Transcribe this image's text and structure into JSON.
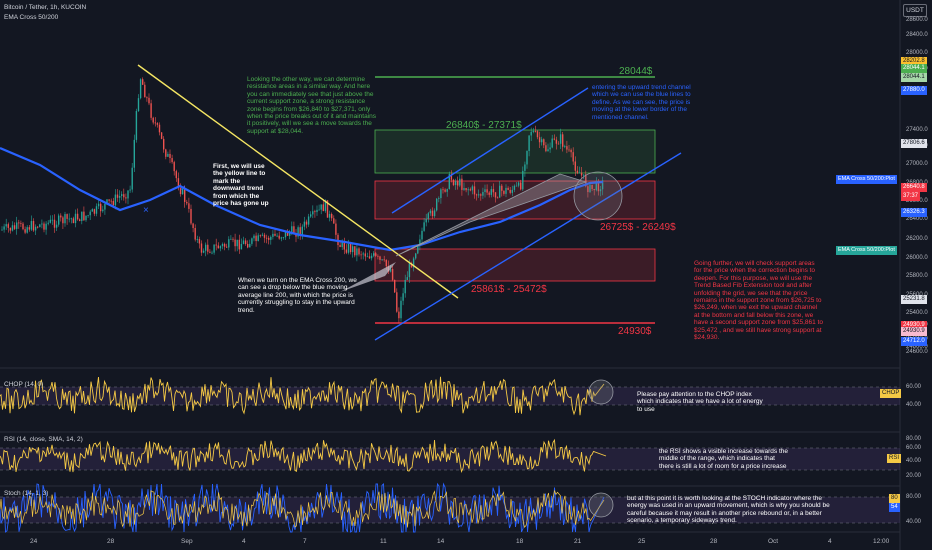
{
  "header": {
    "title": "Bitcoin / Tether, 1h, KUCOIN",
    "indicator": "EMA Cross 50/200",
    "currency_button": "USDT"
  },
  "price_axis": [
    "28600.0",
    "28400.0",
    "28000.0",
    "27600.0",
    "27400.0",
    "27200.0",
    "27000.0",
    "26800.0",
    "26600.0",
    "26400.0",
    "26200.0",
    "26000.0",
    "25800.0",
    "25600.0",
    "25400.0",
    "25200.0",
    "25000.0",
    "24800.0",
    "24600.0"
  ],
  "price_tags": [
    {
      "text": "28202.8",
      "color": "#fbc02d",
      "text_color": "#131722"
    },
    {
      "text": "28044.1",
      "color": "#4caf50",
      "text_color": "#ffffff"
    },
    {
      "text": "28044.1",
      "color": "#a5d6a7",
      "text_color": "#131722"
    },
    {
      "text": "27880.0",
      "color": "#2962ff",
      "text_color": "#ffffff"
    },
    {
      "text": "27806.6",
      "color": "#e0e3eb",
      "text_color": "#131722"
    },
    {
      "text": "26640.8",
      "color": "#f23645",
      "text_color": "#ffffff"
    },
    {
      "text": "37:37",
      "color": "#f23645",
      "text_color": "#ffffff"
    },
    {
      "text": "26326.3",
      "color": "#2962ff",
      "text_color": "#ffffff"
    },
    {
      "text": "25231.8",
      "color": "#e0e3eb",
      "text_color": "#131722"
    },
    {
      "text": "24930.9",
      "color": "#f23645",
      "text_color": "#ffffff"
    },
    {
      "text": "24930.9",
      "color": "#f8bbd0",
      "text_color": "#131722"
    },
    {
      "text": "24712.0",
      "color": "#2962ff",
      "text_color": "#ffffff"
    }
  ],
  "ema_labels": [
    "EMA Cross 50/200:Plot",
    "EMA Cross 50/200:Plot"
  ],
  "time_axis": [
    "24",
    "28",
    "Sep",
    "4",
    "7",
    "11",
    "14",
    "18",
    "21",
    "25",
    "28",
    "Oct",
    "4",
    "12:00"
  ],
  "zones": {
    "resistance_target": "28044$",
    "resistance_zone": "26840$ - 27371$",
    "upper_support_zone": "26725$ - 26249$",
    "lower_support_zone": "25861$ - 25472$",
    "strong_support": "24930$"
  },
  "notes": {
    "other_way": "Looking the other way, we can determine resistance areas in a similar way. And here you can immediately see that just above the current support zone, a strong resistance zone begins from $26,840 to $27,371, only when the price breaks out of it and maintains it positively, will we see a move towards the support at $28,044.",
    "yellow_line": "First, we will use the yellow line to mark the downward trend from which the price has gone up",
    "channel": "entering the upward trend channel which we can use the blue lines to define. As we can see, the price is moving at the lower border of the mentioned channel.",
    "ema": "When we turn on the EMA Cross 200, we can see a drop below the blue moving average line 200, with which the price is currently struggling to stay in the upward trend.",
    "fib": "Going further, we will check support areas for the price when the correction begins to deepen. For this purpose, we will use the Trend Based Fib Extension tool and after unfolding the grid, we see that the price remains in the support zone from $26,725 to $26,249, when we exit the upward channel at the bottom and fall below this zone, we have a second support zone from $25,861 to $25,472 , and we still have strong support at $24,930.",
    "chop": "Please pay attention to the CHOP index which indicates that we have a lot of energy to use",
    "rsi": "the RSI shows a visible increase towards the middle of the range, which indicates that there is still a lot of room for a price increase",
    "stoch": "but at this point it is worth looking at the STOCH indicator where the energy was used in an upward movement, which is why you should be careful because it may result in another price rebound or, in a better scenario, a temporary sideways trend."
  },
  "panes": {
    "chop": {
      "title": "CHOP (14, 0)",
      "axis": [
        "60.00",
        "40.00"
      ],
      "tag": "CHOP"
    },
    "rsi": {
      "title": "RSI (14, close, SMA, 14, 2)",
      "axis": [
        "80.00",
        "60.00",
        "40.00",
        "20.00"
      ],
      "tag": "RSI"
    },
    "stoch": {
      "title": "Stoch (14, 1, 3)",
      "axis": [
        "80.00",
        "40.00"
      ],
      "tags": [
        "80",
        "54"
      ]
    }
  },
  "colors": {
    "background": "#131722",
    "up": "#26a69a",
    "down": "#ef5350",
    "ema": "#2962ff",
    "trendline": "#f5e663",
    "resistance": "#4caf50",
    "support": "#f23645",
    "channel": "#2962ff",
    "indicator": "#f5c945",
    "stoch_k": "#2962ff"
  }
}
